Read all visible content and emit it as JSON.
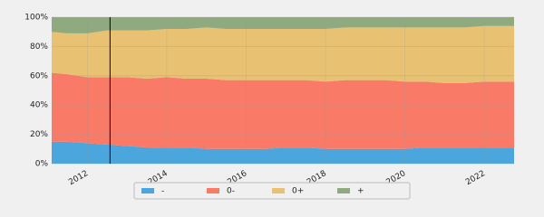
{
  "chart_data": {
    "type": "stacked_area",
    "x": [
      2011.1,
      2011.5,
      2012,
      2012.5,
      2013,
      2013.5,
      2014,
      2014.5,
      2015,
      2015.5,
      2016,
      2016.5,
      2017,
      2017.5,
      2018,
      2018.5,
      2019,
      2019.5,
      2020,
      2020.5,
      2021,
      2021.5,
      2022,
      2022.5,
      2022.75
    ],
    "series": [
      {
        "name": "-",
        "color": "#4aa6dc",
        "values": [
          15,
          15,
          14,
          13,
          12,
          11,
          11,
          11,
          10,
          10,
          10,
          10,
          11,
          11,
          10,
          10,
          10,
          10,
          10,
          11,
          11,
          11,
          11,
          11,
          11
        ]
      },
      {
        "name": "0-",
        "color": "#f97b67",
        "values": [
          47,
          46,
          45,
          46,
          47,
          47,
          48,
          47,
          48,
          47,
          47,
          47,
          46,
          46,
          46,
          47,
          47,
          47,
          46,
          45,
          44,
          44,
          45,
          45,
          45
        ]
      },
      {
        "name": "0+",
        "color": "#e8c272",
        "values": [
          28,
          28,
          30,
          32,
          32,
          33,
          33,
          34,
          35,
          35,
          35,
          35,
          35,
          35,
          36,
          36,
          36,
          36,
          37,
          37,
          38,
          38,
          38,
          38,
          38
        ]
      },
      {
        "name": "+",
        "color": "#8faa7e",
        "values": [
          10,
          11,
          11,
          9,
          9,
          9,
          8,
          8,
          7,
          8,
          8,
          8,
          8,
          8,
          8,
          7,
          7,
          7,
          7,
          7,
          7,
          7,
          6,
          6,
          6
        ]
      }
    ],
    "xlim": [
      2011.1,
      2022.75
    ],
    "xticks": [
      2012,
      2014,
      2016,
      2018,
      2020,
      2022
    ],
    "ylim": [
      0,
      100
    ],
    "yticks": [
      {
        "value": 0,
        "label": "0%"
      },
      {
        "value": 20,
        "label": "20%"
      },
      {
        "value": 40,
        "label": "40%"
      },
      {
        "value": 60,
        "label": "60%"
      },
      {
        "value": 80,
        "label": "80%"
      },
      {
        "value": 100,
        "label": "100%"
      }
    ],
    "vline": 2012.57,
    "grid": true,
    "legend": "bottom"
  }
}
